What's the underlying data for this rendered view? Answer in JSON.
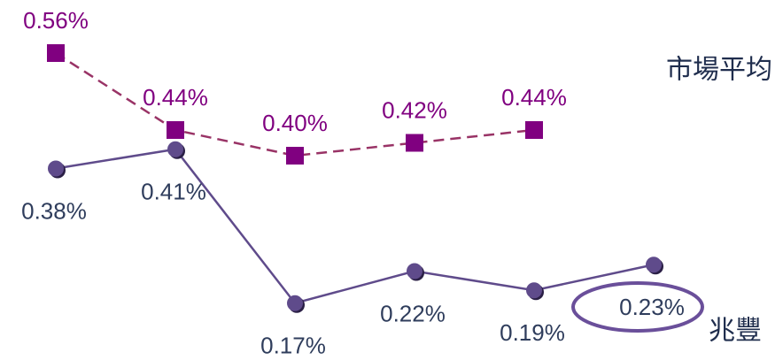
{
  "chart_data": {
    "type": "line",
    "categories": [
      null,
      null,
      null,
      null,
      null,
      null
    ],
    "ylim": [
      0.1,
      0.6
    ],
    "series": [
      {
        "name": "市場平均",
        "color": "#800080",
        "line_color": "#993366",
        "dash": true,
        "marker": "square",
        "values": [
          0.56,
          0.44,
          0.4,
          0.42,
          0.44,
          null
        ],
        "value_labels": [
          "0.56%",
          "0.44%",
          "0.40%",
          "0.42%",
          "0.44%",
          null
        ]
      },
      {
        "name": "兆豐",
        "color": "#5f4b8b",
        "line_color": "#5f4b8b",
        "dash": false,
        "marker": "circle",
        "values": [
          0.38,
          0.41,
          0.17,
          0.22,
          0.19,
          0.23
        ],
        "value_labels": [
          "0.38%",
          "0.41%",
          "0.17%",
          "0.22%",
          "0.19%",
          "0.23%"
        ]
      }
    ]
  }
}
